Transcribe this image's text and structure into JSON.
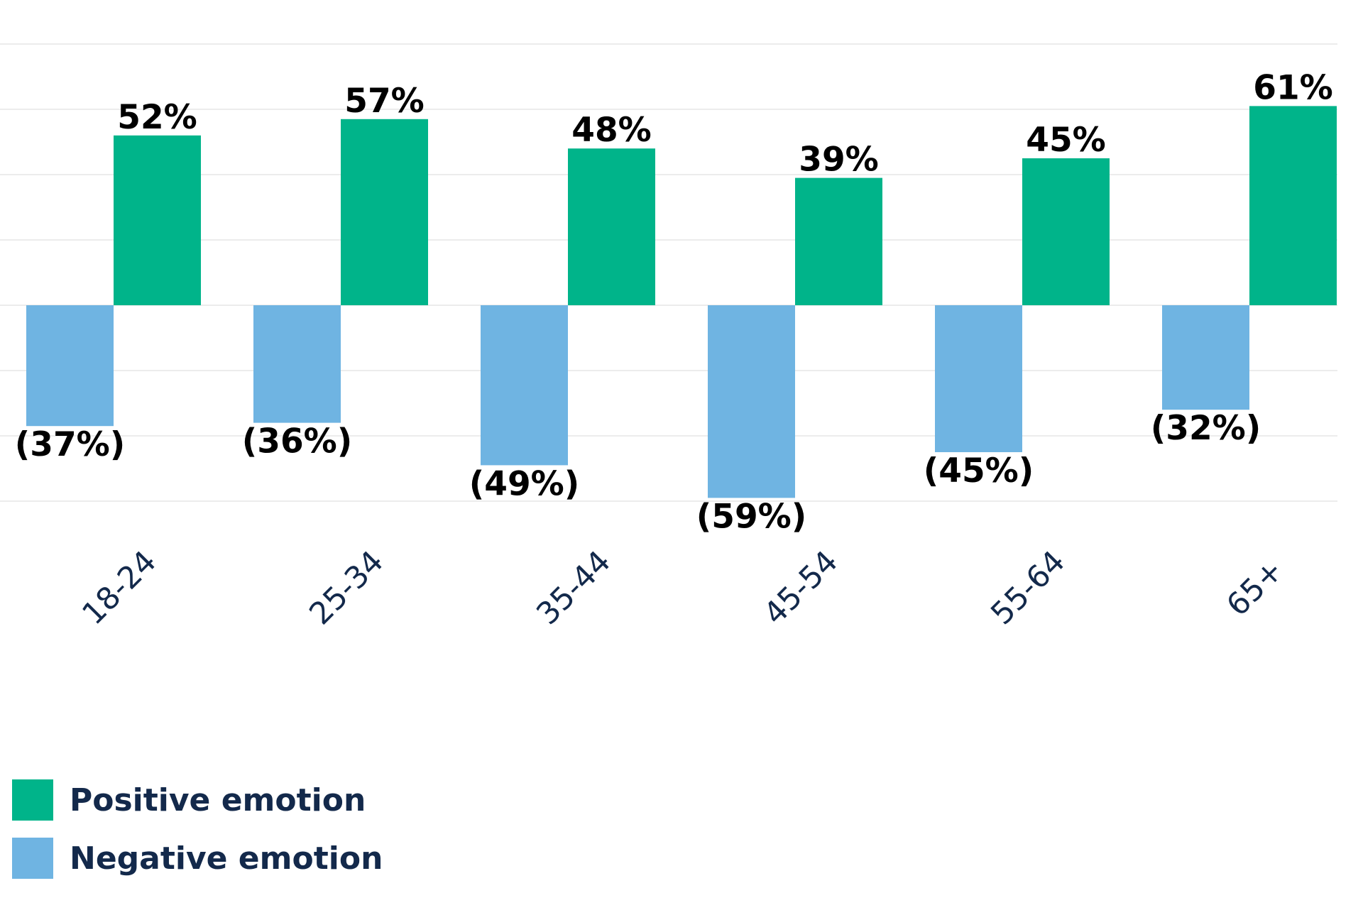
{
  "colors": {
    "positive": "#00b48a",
    "negative": "#6fb4e2",
    "text_dark": "#13294b",
    "label_text": "#000000",
    "gridline": "#e6e6e6"
  },
  "legend": {
    "items": [
      {
        "label": "Positive emotion",
        "color": "#00b48a"
      },
      {
        "label": "Negative emotion",
        "color": "#6fb4e2"
      }
    ]
  },
  "chart_data": {
    "type": "bar",
    "categories": [
      "18-24",
      "25-34",
      "35-44",
      "45-54",
      "55-64",
      "65+"
    ],
    "series": [
      {
        "name": "Negative emotion",
        "values": [
          -37,
          -36,
          -49,
          -59,
          -45,
          -32
        ],
        "labels": [
          "(37%)",
          "(36%)",
          "(49%)",
          "(59%)",
          "(45%)",
          "(32%)"
        ],
        "color": "#6fb4e2"
      },
      {
        "name": "Positive emotion",
        "values": [
          52,
          57,
          48,
          39,
          45,
          61
        ],
        "labels": [
          "52%",
          "57%",
          "48%",
          "39%",
          "45%",
          "61%"
        ],
        "color": "#00b48a"
      }
    ],
    "ylim": [
      -60,
      70
    ],
    "gridlines": true,
    "tick_rotation": "-45deg",
    "legend_position": "bottom-left",
    "title": "",
    "xlabel": "",
    "ylabel": ""
  }
}
